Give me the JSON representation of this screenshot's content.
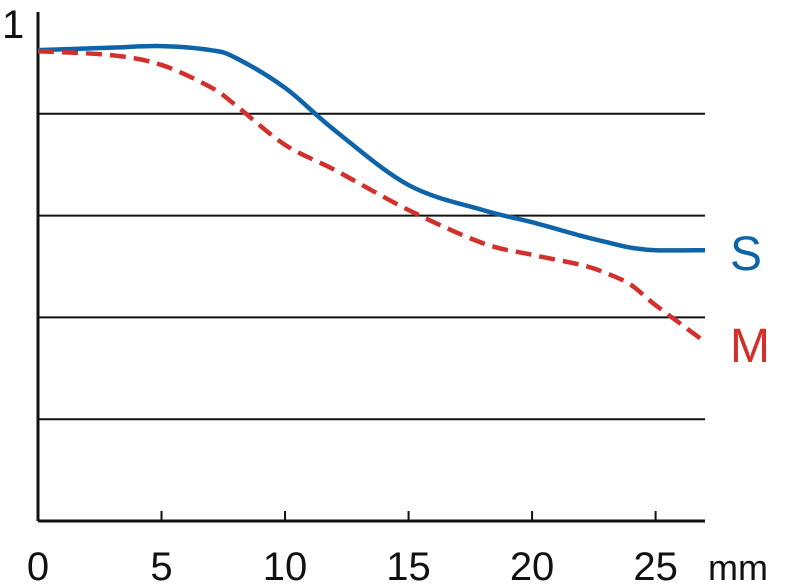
{
  "chart_data": {
    "type": "line",
    "x_unit": "mm",
    "xlim": [
      0,
      27
    ],
    "xticks": [
      0,
      5,
      10,
      15,
      20,
      25
    ],
    "ylim": [
      0,
      1
    ],
    "yticks": [
      1
    ],
    "ygrid": [
      0.2,
      0.4,
      0.6,
      0.8
    ],
    "x": [
      0,
      3,
      5,
      7,
      8,
      10,
      12,
      15,
      18,
      20,
      22,
      23,
      24,
      25,
      27
    ],
    "series": [
      {
        "name": "S",
        "color": "#0d64a8",
        "dashed": false,
        "values": [
          0.925,
          0.93,
          0.933,
          0.925,
          0.91,
          0.851,
          0.768,
          0.66,
          0.611,
          0.587,
          0.56,
          0.548,
          0.537,
          0.532,
          0.532
        ]
      },
      {
        "name": "M",
        "color": "#d2302c",
        "dashed": true,
        "values": [
          0.923,
          0.915,
          0.896,
          0.852,
          0.817,
          0.739,
          0.69,
          0.611,
          0.546,
          0.523,
          0.503,
          0.487,
          0.464,
          0.424,
          0.352
        ]
      }
    ]
  }
}
